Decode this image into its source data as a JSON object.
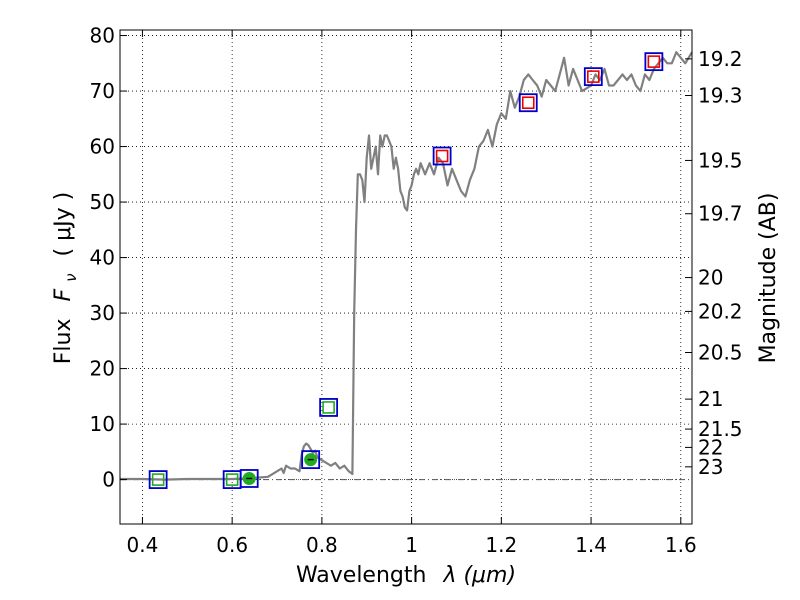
{
  "chart_data": {
    "type": "line",
    "xlabel_text": "Wavelength",
    "xlabel_symbol": "λ (μm)",
    "ylabel_text": "Flux",
    "ylabel_symbol": "F",
    "ylabel_subscript": "ν",
    "ylabel_unit": "( μJy )",
    "ylabel_right": "Magnitude (AB)",
    "xlim": [
      0.35,
      1.625
    ],
    "ylim": [
      -8,
      81
    ],
    "grid": true,
    "x_ticks": [
      {
        "value": 0.4,
        "label": "0.4"
      },
      {
        "value": 0.6,
        "label": "0.6"
      },
      {
        "value": 0.8,
        "label": "0.8"
      },
      {
        "value": 1.0,
        "label": "1"
      },
      {
        "value": 1.2,
        "label": "1.2"
      },
      {
        "value": 1.4,
        "label": "1.4"
      },
      {
        "value": 1.6,
        "label": "1.6"
      }
    ],
    "y_ticks": [
      {
        "value": 0,
        "label": "0"
      },
      {
        "value": 10,
        "label": "10"
      },
      {
        "value": 20,
        "label": "20"
      },
      {
        "value": 30,
        "label": "30"
      },
      {
        "value": 40,
        "label": "40"
      },
      {
        "value": 50,
        "label": "50"
      },
      {
        "value": 60,
        "label": "60"
      },
      {
        "value": 70,
        "label": "70"
      },
      {
        "value": 80,
        "label": "80"
      }
    ],
    "mag_ticks": [
      {
        "flux": 75.8,
        "label": "19.2"
      },
      {
        "flux": 69.2,
        "label": "19.3"
      },
      {
        "flux": 57.5,
        "label": "19.5"
      },
      {
        "flux": 47.9,
        "label": "19.7"
      },
      {
        "flux": 36.4,
        "label": "20"
      },
      {
        "flux": 30.3,
        "label": "20.2"
      },
      {
        "flux": 22.9,
        "label": "20.5"
      },
      {
        "flux": 14.5,
        "label": "21"
      },
      {
        "flux": 9.1,
        "label": "21.5"
      },
      {
        "flux": 5.8,
        "label": "22"
      },
      {
        "flux": 2.3,
        "label": "23"
      }
    ],
    "spectrum": {
      "color": "#808080",
      "x": [
        0.35,
        0.4,
        0.45,
        0.5,
        0.55,
        0.6,
        0.65,
        0.68,
        0.7,
        0.71,
        0.715,
        0.72,
        0.73,
        0.74,
        0.75,
        0.755,
        0.76,
        0.765,
        0.77,
        0.78,
        0.785,
        0.79,
        0.8,
        0.81,
        0.82,
        0.83,
        0.84,
        0.85,
        0.86,
        0.868,
        0.872,
        0.876,
        0.88,
        0.885,
        0.89,
        0.895,
        0.9,
        0.905,
        0.91,
        0.915,
        0.92,
        0.925,
        0.93,
        0.935,
        0.94,
        0.945,
        0.95,
        0.955,
        0.96,
        0.965,
        0.97,
        0.975,
        0.98,
        0.985,
        0.99,
        0.995,
        1.0,
        1.005,
        1.01,
        1.015,
        1.02,
        1.03,
        1.04,
        1.05,
        1.06,
        1.07,
        1.08,
        1.09,
        1.1,
        1.11,
        1.12,
        1.13,
        1.14,
        1.15,
        1.16,
        1.17,
        1.18,
        1.19,
        1.2,
        1.21,
        1.22,
        1.23,
        1.24,
        1.25,
        1.26,
        1.27,
        1.28,
        1.29,
        1.3,
        1.31,
        1.32,
        1.33,
        1.34,
        1.35,
        1.36,
        1.37,
        1.38,
        1.39,
        1.4,
        1.41,
        1.42,
        1.43,
        1.44,
        1.45,
        1.46,
        1.47,
        1.48,
        1.49,
        1.5,
        1.51,
        1.52,
        1.53,
        1.54,
        1.55,
        1.56,
        1.57,
        1.58,
        1.59,
        1.6,
        1.61,
        1.625
      ],
      "y": [
        0.1,
        0.1,
        0.0,
        0.1,
        0.1,
        0.1,
        0.3,
        0.5,
        1.5,
        2.0,
        1.2,
        2.5,
        2.0,
        2.0,
        1.5,
        4.5,
        6.0,
        6.5,
        6.2,
        4.8,
        5.2,
        4.0,
        3.5,
        3.0,
        2.5,
        3.0,
        2.0,
        2.5,
        1.5,
        1.0,
        30.0,
        45.0,
        55.0,
        55.0,
        54.0,
        50.0,
        58.0,
        62.0,
        56.0,
        58.0,
        60.0,
        55.0,
        62.0,
        60.0,
        62.0,
        62.0,
        61.0,
        60.0,
        56.0,
        58.0,
        56.0,
        52.0,
        51.0,
        49.0,
        48.5,
        52.0,
        53.0,
        55.0,
        56.0,
        55.0,
        57.0,
        55.0,
        57.0,
        55.0,
        58.0,
        57.0,
        53.0,
        56.0,
        54.0,
        52.0,
        51.0,
        54.0,
        56.0,
        60.0,
        61.0,
        63.0,
        60.0,
        64.0,
        66.0,
        65.0,
        70.0,
        67.0,
        69.0,
        72.0,
        73.0,
        72.0,
        71.0,
        69.0,
        72.0,
        71.0,
        70.0,
        73.0,
        76.0,
        71.0,
        74.0,
        72.0,
        70.0,
        70.5,
        71.0,
        73.0,
        72.0,
        74.0,
        71.0,
        71.0,
        72.0,
        73.0,
        72.0,
        73.0,
        71.0,
        70.0,
        73.0,
        72.0,
        74.0,
        75.0,
        76.0,
        75.0,
        75.0,
        77.0,
        76.0,
        75.0,
        77.0
      ]
    },
    "baseline": {
      "y": 0,
      "style": "dashdot",
      "color": "#555555"
    },
    "photometry": [
      {
        "x": 0.435,
        "y": 0.0,
        "box_color": "#0000cc",
        "inner_color": "#22aa22",
        "inner_shape": "square"
      },
      {
        "x": 0.6,
        "y": 0.0,
        "box_color": "#0000cc",
        "inner_color": "#22aa22",
        "inner_shape": "square"
      },
      {
        "x": 0.638,
        "y": 0.2,
        "box_color": "#0000cc",
        "inner_color": "#22aa22",
        "inner_shape": "dot"
      },
      {
        "x": 0.775,
        "y": 3.6,
        "box_color": "#0000cc",
        "inner_color": "#22aa22",
        "inner_shape": "dot"
      },
      {
        "x": 0.815,
        "y": 13.0,
        "box_color": "#0000cc",
        "inner_color": "#22aa22",
        "inner_shape": "square"
      },
      {
        "x": 1.068,
        "y": 58.3,
        "box_color": "#0000cc",
        "inner_color": "#ee0000",
        "inner_shape": "square"
      },
      {
        "x": 1.26,
        "y": 67.9,
        "box_color": "#0000cc",
        "inner_color": "#ee0000",
        "inner_shape": "square"
      },
      {
        "x": 1.405,
        "y": 72.6,
        "box_color": "#0000cc",
        "inner_color": "#ee0000",
        "inner_shape": "square"
      },
      {
        "x": 1.54,
        "y": 75.3,
        "box_color": "#0000cc",
        "inner_color": "#ee0000",
        "inner_shape": "square"
      }
    ]
  }
}
